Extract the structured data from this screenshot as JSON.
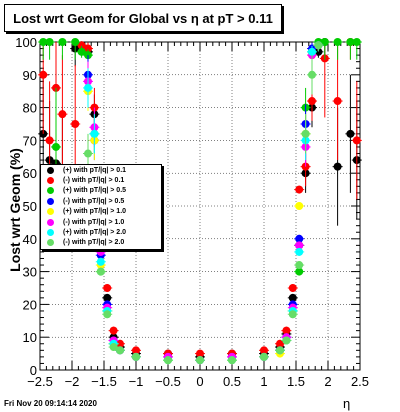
{
  "title": "Lost wrt Geom for Global vs  η at pT > 0.11",
  "footer": "Fri Nov 20 09:14:14 2020",
  "chart_data": {
    "type": "scatter",
    "xlabel": "η",
    "ylabel": "Lost wrt Geom (%)",
    "xlim": [
      -2.5,
      2.5
    ],
    "ylim": [
      0,
      100
    ],
    "grid": true,
    "legend_position": "middle-left",
    "xticks": [
      "−2.5",
      "−2",
      "−1.5",
      "−1",
      "−0.5",
      "0",
      "0.5",
      "1",
      "1.5",
      "2",
      "2.5"
    ],
    "yticks": [
      "0",
      "10",
      "20",
      "30",
      "40",
      "50",
      "60",
      "70",
      "80",
      "90",
      "100"
    ],
    "series": [
      {
        "name": "(+) with pT/|q| > 0.1",
        "color": "#000000",
        "x": [
          -2.45,
          -2.35,
          -2.25,
          -2.15,
          -1.95,
          -1.85,
          -1.75,
          -1.65,
          -1.55,
          -1.45,
          -1.35,
          -1.25,
          -1.0,
          -0.5,
          0.0,
          0.5,
          1.0,
          1.25,
          1.35,
          1.45,
          1.55,
          1.65,
          1.75,
          1.85,
          1.95,
          2.15,
          2.35,
          2.45
        ],
        "y": [
          72,
          64,
          63,
          60,
          98,
          99,
          97,
          78,
          40,
          22,
          10,
          7,
          5,
          5,
          4,
          5,
          5,
          7,
          11,
          22,
          38,
          60,
          80,
          97,
          100,
          62,
          72,
          64
        ]
      },
      {
        "name": "(-) with pT/|q| > 0.1",
        "color": "#ff0000",
        "x": [
          -2.45,
          -2.35,
          -2.25,
          -2.15,
          -1.95,
          -1.85,
          -1.75,
          -1.65,
          -1.55,
          -1.45,
          -1.35,
          -1.25,
          -1.0,
          -0.5,
          0.0,
          0.5,
          1.0,
          1.25,
          1.35,
          1.45,
          1.55,
          1.65,
          1.75,
          1.85,
          1.95,
          2.15,
          2.35,
          2.45
        ],
        "y": [
          90,
          70,
          86,
          78,
          75,
          99,
          98,
          80,
          45,
          25,
          12,
          8,
          6,
          5,
          5,
          5,
          6,
          8,
          12,
          25,
          55,
          62,
          82,
          99,
          95,
          82,
          100,
          70
        ]
      },
      {
        "name": "(+) with pT/|q| > 0.5",
        "color": "#00cc00",
        "x": [
          -2.45,
          -2.35,
          -2.25,
          -2.15,
          -1.95,
          -1.85,
          -1.75,
          -1.65,
          -1.55,
          -1.45,
          -1.35,
          -1.25,
          -1.0,
          -0.5,
          0.0,
          0.5,
          1.0,
          1.25,
          1.35,
          1.45,
          1.55,
          1.65,
          1.75,
          1.85,
          1.95,
          2.15,
          2.35,
          2.45
        ],
        "y": [
          100,
          100,
          68,
          100,
          100,
          97,
          96,
          72,
          30,
          18,
          8,
          6,
          4,
          3,
          3,
          3,
          4,
          6,
          9,
          18,
          30,
          80,
          97,
          100,
          100,
          100,
          100,
          100
        ]
      },
      {
        "name": "(-) with pT/|q| > 0.5",
        "color": "#0000ff",
        "x": [
          -1.75,
          -1.65,
          -1.55,
          -1.45,
          -1.35,
          -1.25,
          -1.0,
          -0.5,
          0.0,
          0.5,
          1.0,
          1.25,
          1.35,
          1.45,
          1.55,
          1.65,
          1.75,
          1.85
        ],
        "y": [
          90,
          70,
          35,
          20,
          9,
          6,
          4,
          4,
          3,
          4,
          4,
          6,
          10,
          20,
          40,
          75,
          98,
          99
        ]
      },
      {
        "name": "(+) with pT/|q| > 1.0",
        "color": "#ffff00",
        "x": [
          -1.75,
          -1.65,
          -1.55,
          -1.45,
          -1.35,
          -1.25,
          -1.0,
          -0.5,
          0.0,
          0.5,
          1.0,
          1.25,
          1.35,
          1.45,
          1.55,
          1.65,
          1.75,
          1.85
        ],
        "y": [
          85,
          70,
          32,
          18,
          8,
          6,
          4,
          3,
          3,
          3,
          4,
          5,
          9,
          18,
          50,
          72,
          96,
          99
        ]
      },
      {
        "name": "(-) with pT/|q| > 1.0",
        "color": "#ff00ff",
        "x": [
          -1.75,
          -1.65,
          -1.55,
          -1.45,
          -1.35,
          -1.25,
          -1.0,
          -0.5,
          0.0,
          0.5,
          1.0,
          1.25,
          1.35,
          1.45,
          1.55,
          1.65,
          1.75,
          1.85
        ],
        "y": [
          88,
          74,
          36,
          19,
          9,
          6,
          4,
          4,
          3,
          4,
          4,
          6,
          10,
          19,
          38,
          68,
          96,
          99
        ]
      },
      {
        "name": "(+) with pT/|q| > 2.0",
        "color": "#00ffff",
        "x": [
          -1.75,
          -1.65,
          -1.55,
          -1.45,
          -1.35,
          -1.25,
          -1.0,
          -0.5,
          0.0,
          0.5,
          1.0,
          1.25,
          1.35,
          1.45,
          1.55,
          1.65,
          1.75,
          1.85
        ],
        "y": [
          86,
          72,
          33,
          18,
          8,
          6,
          4,
          3,
          3,
          3,
          4,
          6,
          9,
          18,
          36,
          70,
          97,
          99
        ]
      },
      {
        "name": "(-) with pT/|q| > 2.0",
        "color": "#66dd66",
        "x": [
          -1.75,
          -1.65,
          -1.55,
          -1.45,
          -1.35,
          -1.25,
          -1.0,
          -0.5,
          0.0,
          0.5,
          1.0,
          1.25,
          1.35,
          1.45,
          1.55,
          1.65,
          1.75,
          1.85
        ],
        "y": [
          66,
          52,
          30,
          17,
          7,
          6,
          4,
          3,
          3,
          3,
          4,
          6,
          9,
          17,
          32,
          72,
          90,
          99
        ]
      }
    ]
  }
}
